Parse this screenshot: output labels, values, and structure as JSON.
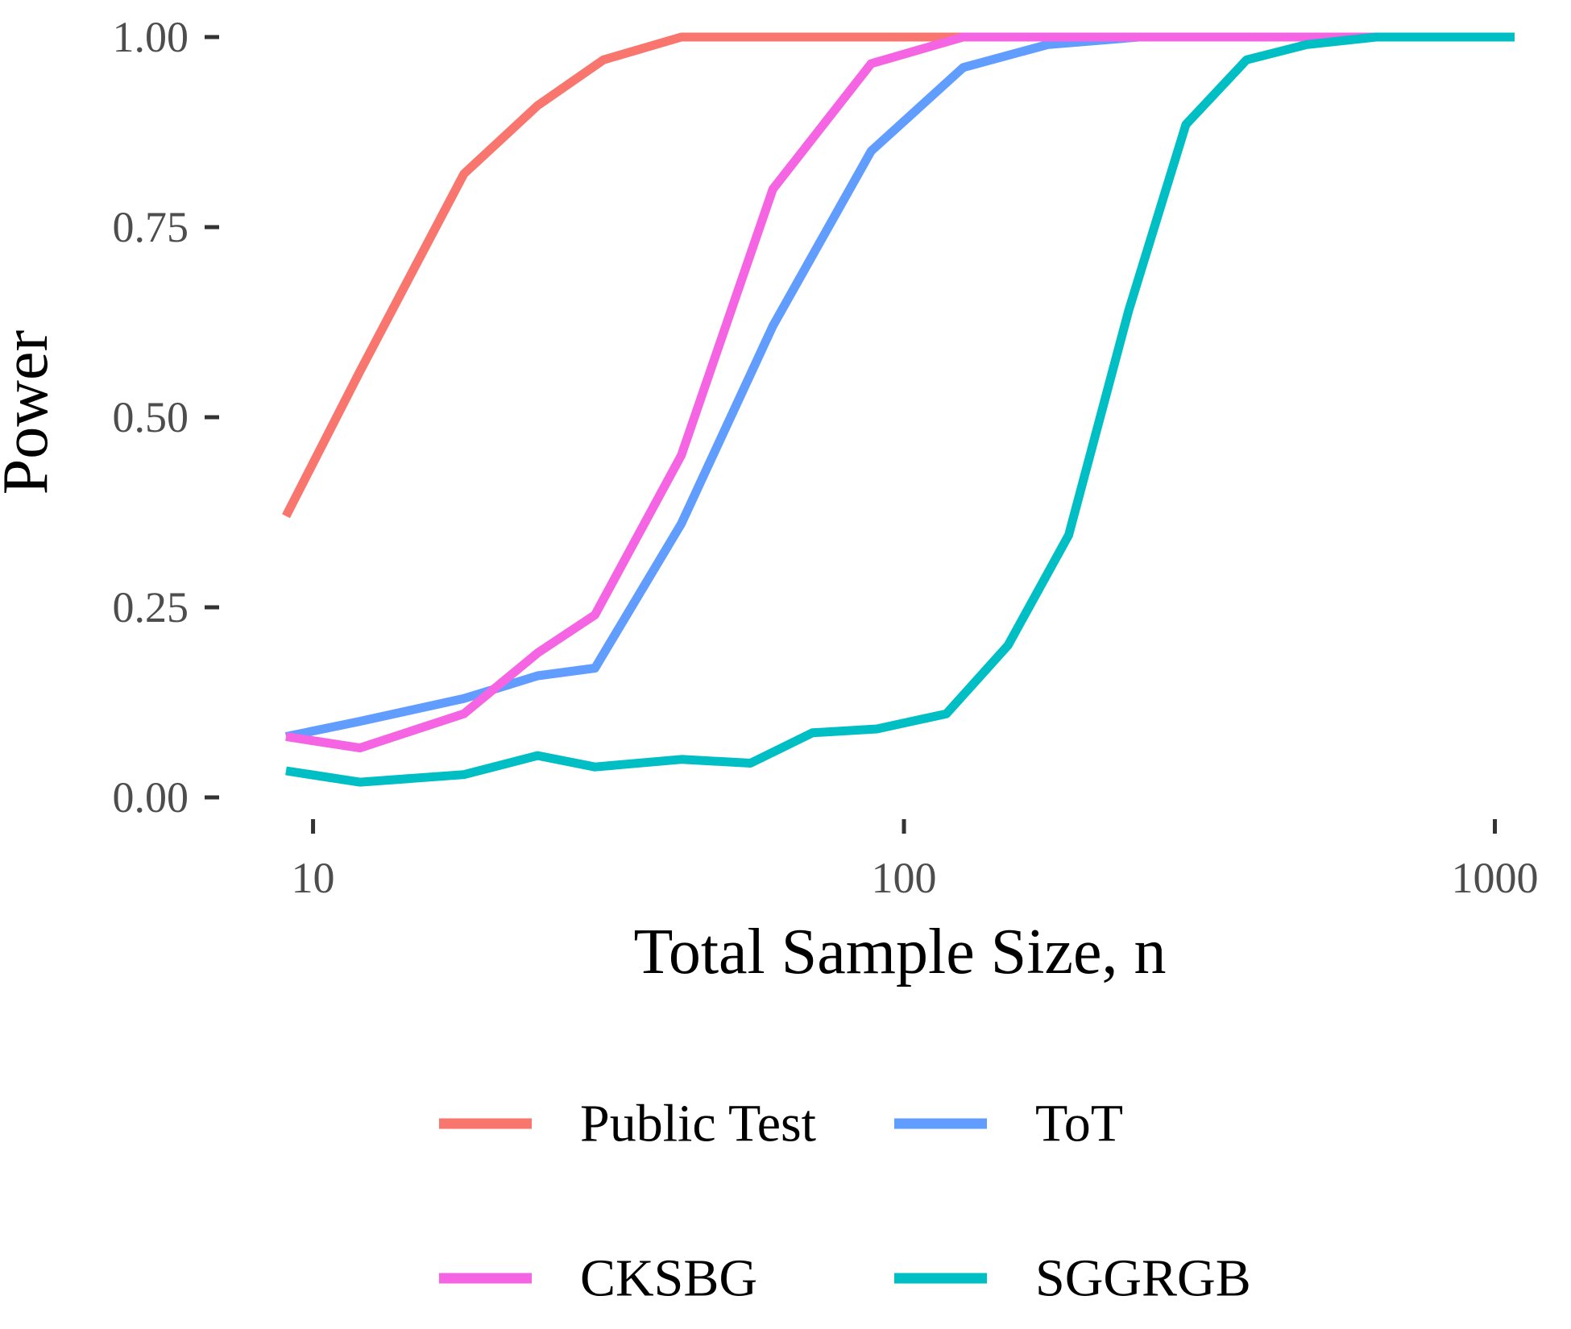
{
  "chart_data": {
    "type": "line",
    "title": "",
    "xlabel": "Total Sample Size, n",
    "ylabel": "Power",
    "x_scale": "log10",
    "xlim": [
      9,
      1080
    ],
    "ylim": [
      0,
      1
    ],
    "x_ticks": [
      10,
      100,
      1000
    ],
    "x_tick_labels": [
      "10",
      "100",
      "1000"
    ],
    "y_ticks": [
      0,
      0.25,
      0.5,
      0.75,
      1
    ],
    "y_tick_labels": [
      "0.00",
      "0.25",
      "0.50",
      "0.75",
      "1.00"
    ],
    "grid": false,
    "legend_position": "bottom",
    "series": [
      {
        "name": "Public Test",
        "color": "#F8766D",
        "x": [
          9,
          12,
          18,
          24,
          31,
          42,
          55,
          70,
          90,
          120,
          160,
          220,
          300,
          400,
          550,
          750,
          1080
        ],
        "y": [
          0.37,
          0.56,
          0.82,
          0.91,
          0.97,
          1.0,
          1.0,
          1.0,
          1.0,
          1.0,
          1.0,
          1.0,
          1.0,
          1.0,
          1.0,
          1.0,
          1.0
        ]
      },
      {
        "name": "ToT",
        "color": "#619CFF",
        "x": [
          9,
          12,
          18,
          24,
          30,
          42,
          60,
          88,
          126,
          175,
          250,
          350,
          500,
          700,
          1080
        ],
        "y": [
          0.08,
          0.1,
          0.13,
          0.16,
          0.17,
          0.36,
          0.62,
          0.85,
          0.96,
          0.99,
          1.0,
          1.0,
          1.0,
          1.0,
          1.0
        ]
      },
      {
        "name": "CKSBG",
        "color": "#F564E3",
        "x": [
          9,
          12,
          18,
          24,
          30,
          42,
          60,
          88,
          126,
          175,
          250,
          350,
          500,
          700,
          1080
        ],
        "y": [
          0.08,
          0.065,
          0.11,
          0.19,
          0.24,
          0.45,
          0.8,
          0.965,
          1.0,
          1.0,
          1.0,
          1.0,
          1.0,
          1.0,
          1.0
        ]
      },
      {
        "name": "SGGRGB",
        "color": "#00BFC4",
        "x": [
          9,
          12,
          18,
          24,
          30,
          42,
          55,
          70,
          90,
          118,
          150,
          190,
          240,
          300,
          380,
          480,
          630,
          820,
          1080
        ],
        "y": [
          0.035,
          0.02,
          0.03,
          0.055,
          0.04,
          0.05,
          0.045,
          0.085,
          0.09,
          0.11,
          0.2,
          0.345,
          0.64,
          0.885,
          0.97,
          0.99,
          1.0,
          1.0,
          1.0
        ]
      }
    ],
    "legend_order": [
      "Public Test",
      "ToT",
      "CKSBG",
      "SGGRGB"
    ]
  }
}
